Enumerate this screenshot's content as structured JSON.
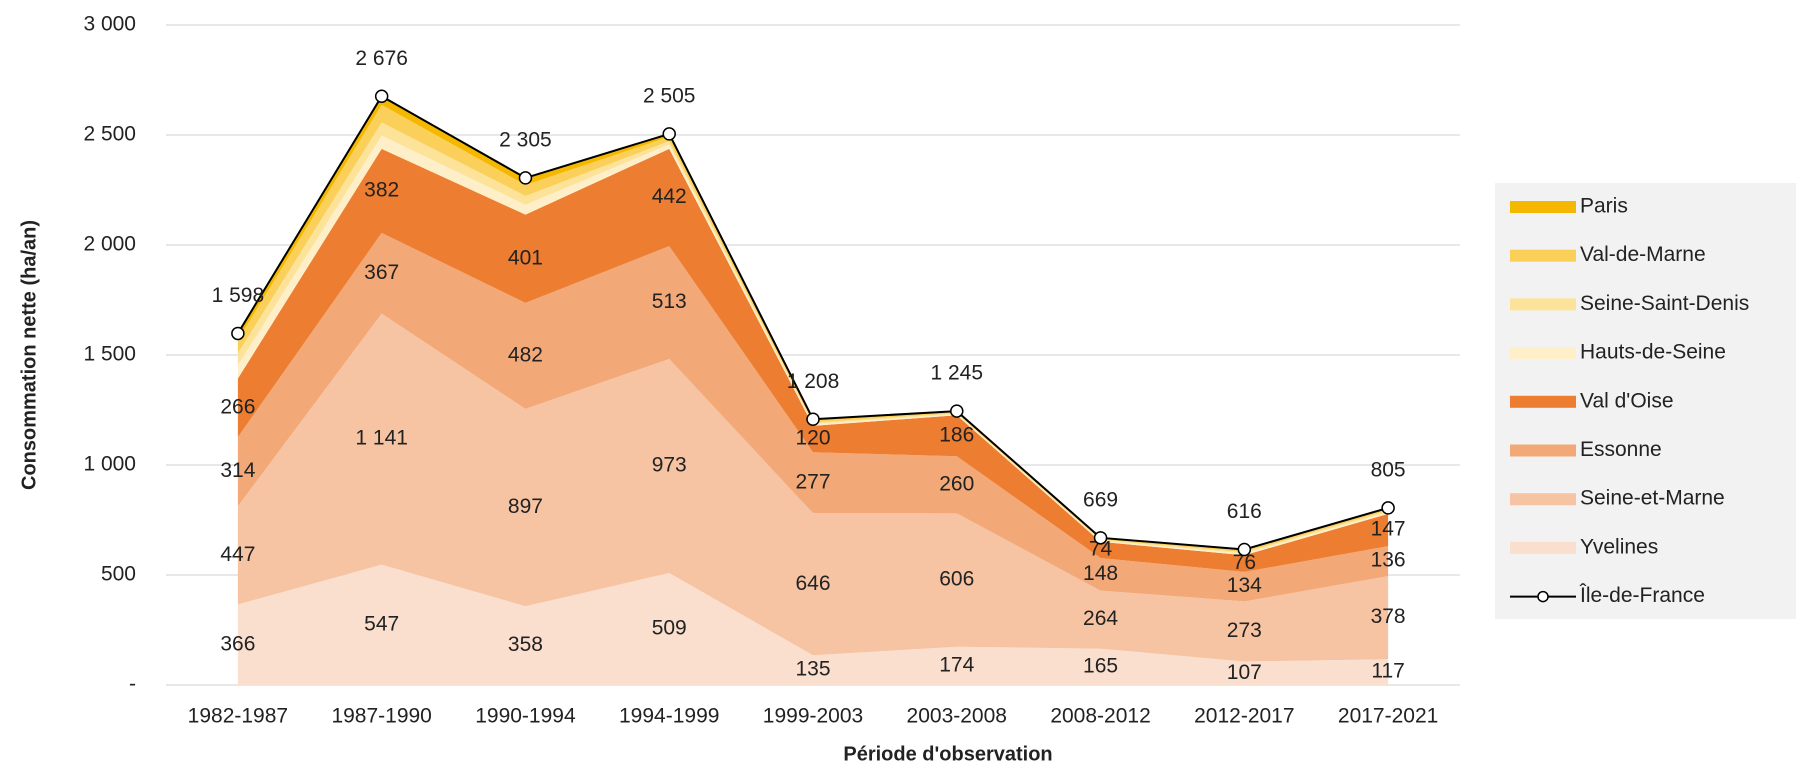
{
  "chart_data": {
    "type": "stacked_area",
    "x_label": "Période d'observation",
    "y_label": "Consommation nette (ha/an)",
    "categories": [
      "1982-1987",
      "1987-1990",
      "1990-1994",
      "1994-1999",
      "1999-2003",
      "2003-2008",
      "2008-2012",
      "2012-2017",
      "2017-2021"
    ],
    "ylim": [
      0,
      3000
    ],
    "yticks": [
      {
        "value": 0,
        "label": "-"
      },
      500,
      {
        "value": 1000,
        "label": "1 000"
      },
      {
        "value": 1500,
        "label": "1 500"
      },
      {
        "value": 2000,
        "label": "2 000"
      },
      {
        "value": 2500,
        "label": "2 500"
      },
      {
        "value": 3000,
        "label": "3 000"
      }
    ],
    "grid": true,
    "legend": "right",
    "series": [
      {
        "name": "Yvelines",
        "color": "#fadfcf",
        "values": [
          366,
          547,
          358,
          509,
          135,
          174,
          165,
          107,
          117
        ]
      },
      {
        "name": "Seine-et-Marne",
        "color": "#f6c4a3",
        "values": [
          447,
          1141,
          897,
          973,
          646,
          606,
          264,
          273,
          378
        ],
        "value_labels": [
          "447",
          "1 141",
          "897",
          "973",
          "646",
          "606",
          "264",
          "273",
          "378"
        ]
      },
      {
        "name": "Essonne",
        "color": "#f2a977",
        "values": [
          314,
          367,
          482,
          513,
          277,
          260,
          148,
          134,
          136
        ]
      },
      {
        "name": "Val d'Oise",
        "color": "#ed7d31",
        "values": [
          266,
          382,
          401,
          442,
          120,
          186,
          74,
          76,
          147
        ]
      },
      {
        "name": "Hauts-de-Seine",
        "color": "#feefc8",
        "values": [
          60,
          60,
          45,
          20,
          8,
          5,
          5,
          8,
          8
        ]
      },
      {
        "name": "Seine-Saint-Denis",
        "color": "#fde39a",
        "values": [
          55,
          60,
          40,
          15,
          7,
          5,
          5,
          6,
          7
        ]
      },
      {
        "name": "Val-de-Marne",
        "color": "#fbd05a",
        "values": [
          60,
          80,
          50,
          20,
          8,
          5,
          5,
          7,
          7
        ]
      },
      {
        "name": "Paris",
        "color": "#f5b800",
        "values": [
          30,
          39,
          32,
          13,
          7,
          4,
          3,
          5,
          5
        ]
      }
    ],
    "total": {
      "name": "Île-de-France",
      "color": "#000000",
      "values": [
        1598,
        2676,
        2305,
        2505,
        1208,
        1245,
        669,
        616,
        805
      ],
      "value_labels": [
        "1 598",
        "2 676",
        "2 305",
        "2 505",
        "1 208",
        "1 245",
        "669",
        "616",
        "805"
      ]
    }
  }
}
